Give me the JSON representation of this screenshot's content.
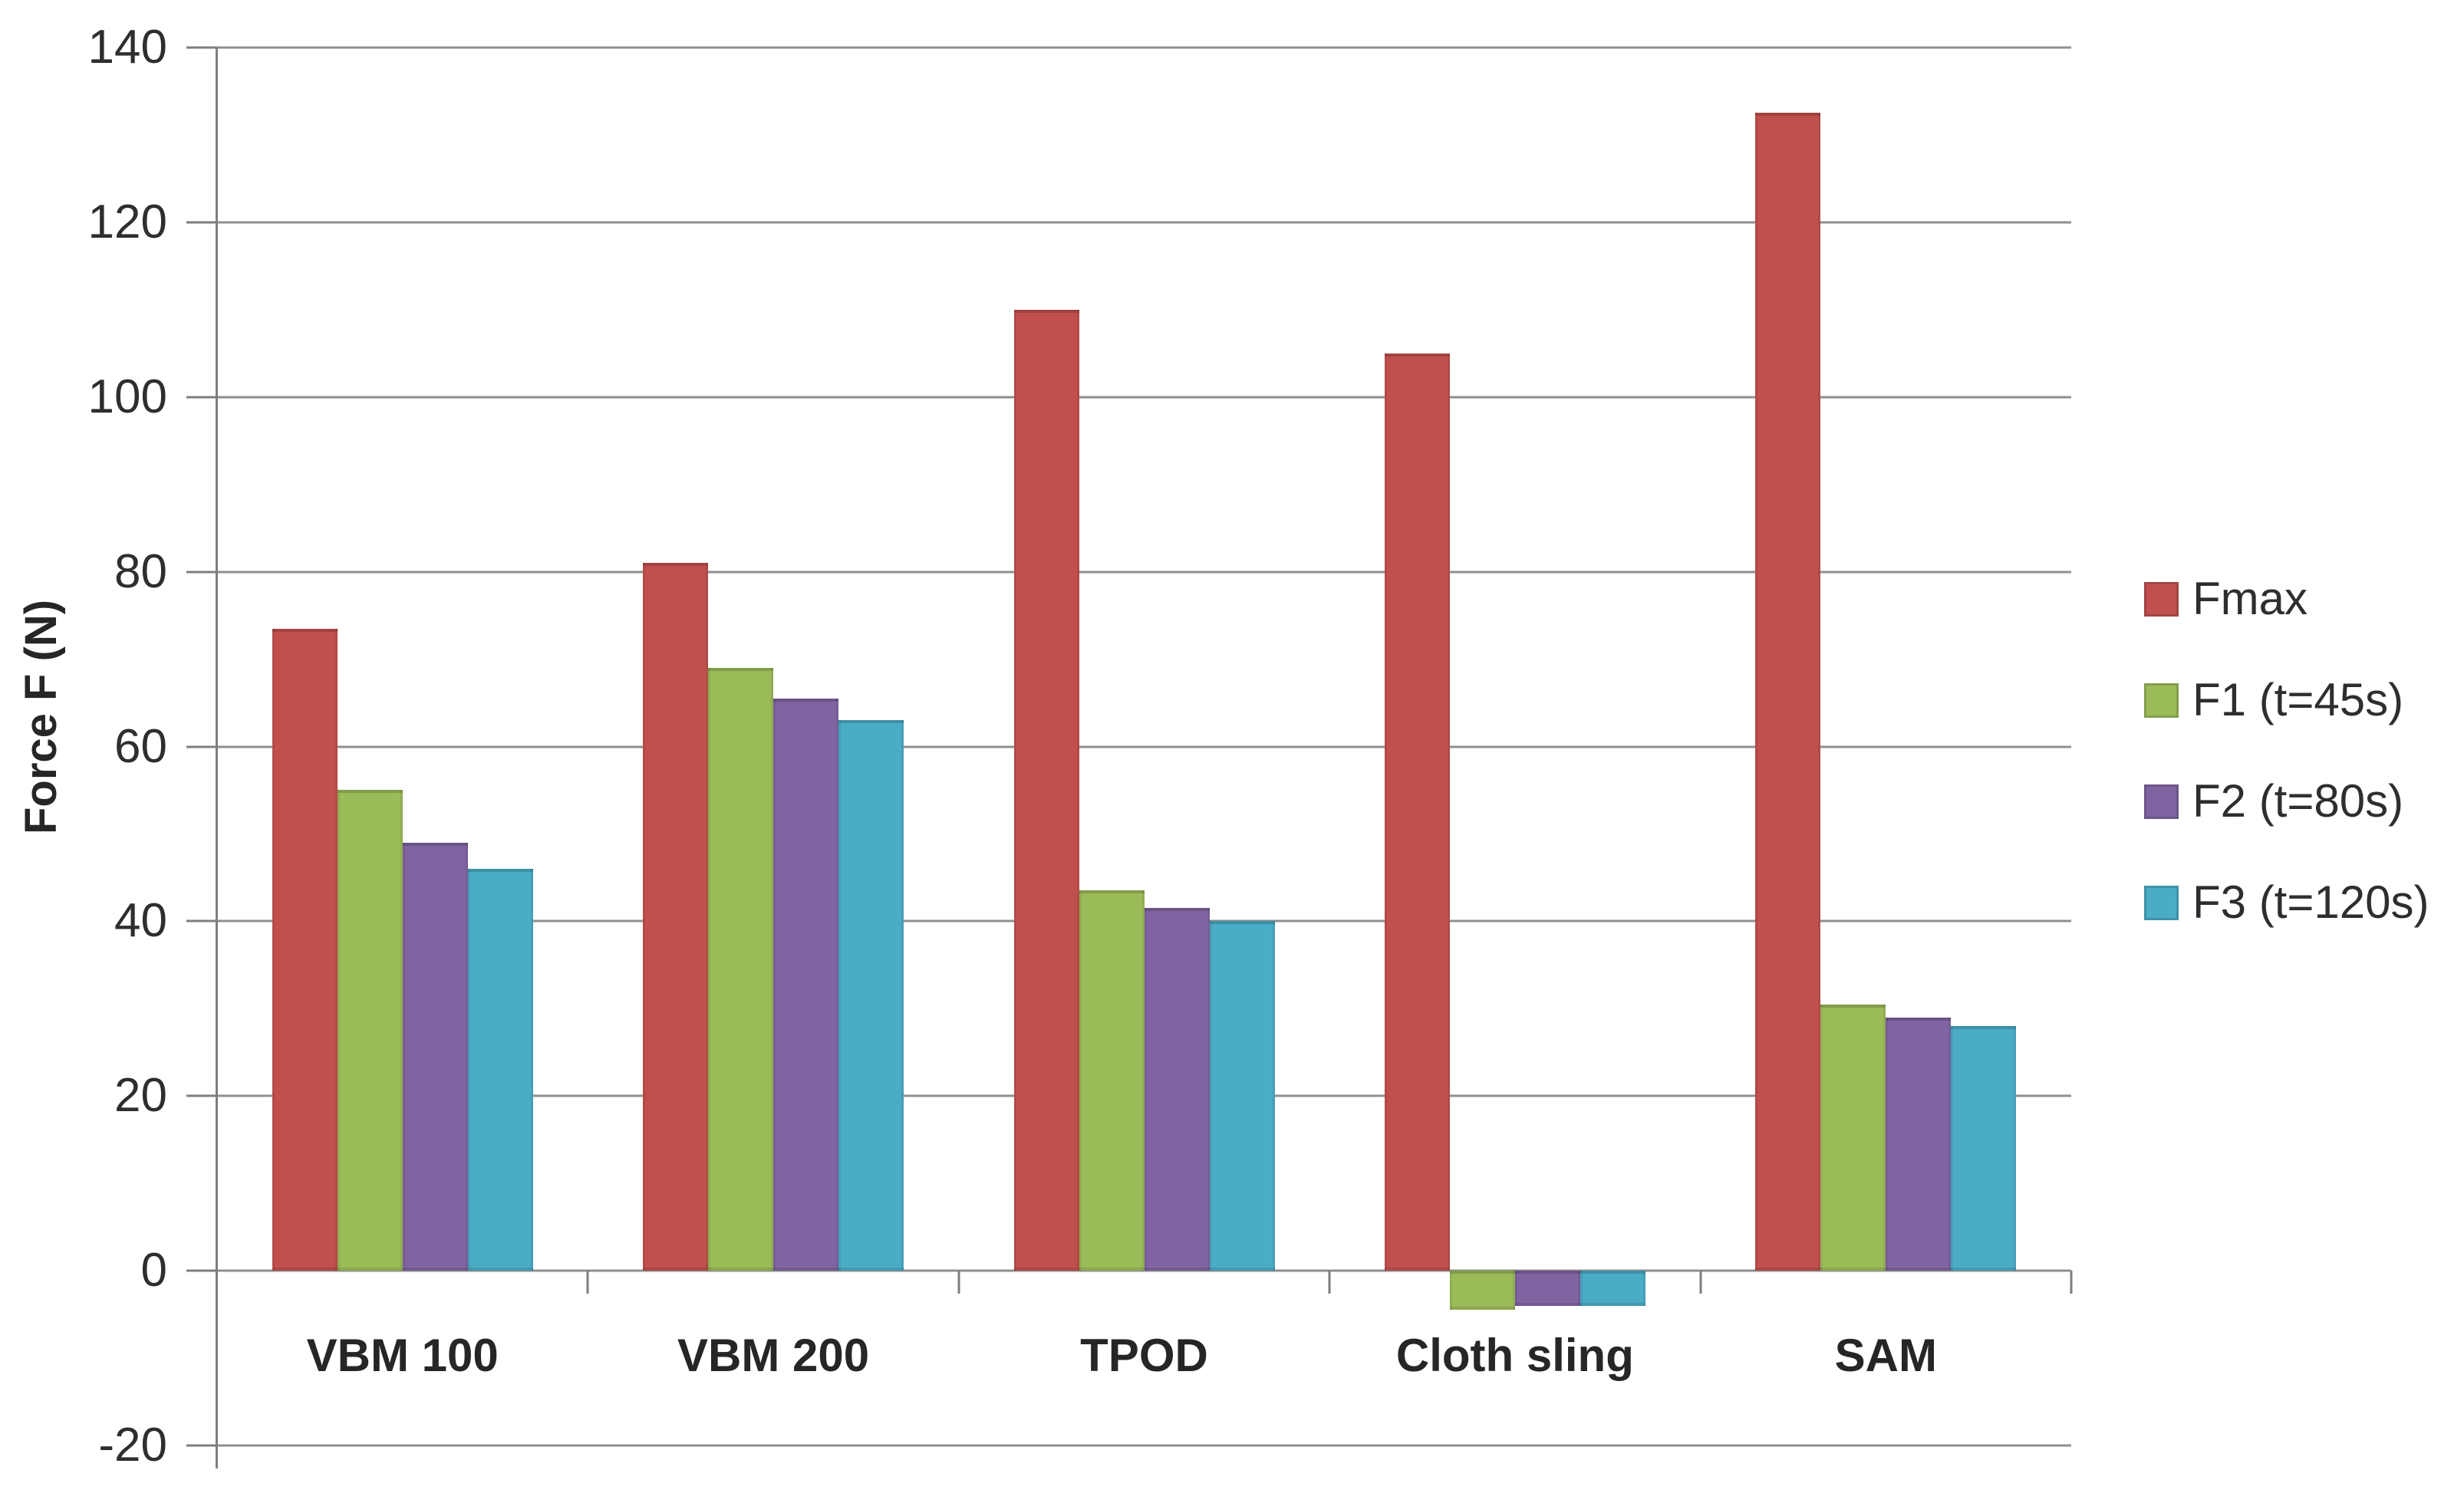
{
  "chart_data": {
    "type": "bar",
    "title": "",
    "xlabel": "",
    "ylabel": "Force F (N)",
    "categories": [
      "VBM 100",
      "VBM 200",
      "TPOD",
      "Cloth sling",
      "SAM"
    ],
    "series": [
      {
        "name": "Fmax",
        "color": "#C0504D",
        "values": [
          73.5,
          81,
          110,
          105,
          132.5
        ]
      },
      {
        "name": "F1 (t=45s)",
        "color": "#9BBB59",
        "values": [
          55,
          69,
          43.5,
          -4.5,
          30.5
        ]
      },
      {
        "name": "F2 (t=80s)",
        "color": "#8064A2",
        "values": [
          49,
          65.5,
          41.5,
          -4,
          29
        ]
      },
      {
        "name": "F3 (t=120s)",
        "color": "#4BACC6",
        "values": [
          46,
          63,
          40,
          -4,
          28
        ]
      }
    ],
    "ylim": [
      -20,
      140
    ],
    "yticks": [
      140,
      120,
      100,
      80,
      60,
      40,
      20,
      0,
      -20
    ],
    "grid": true,
    "legend_position": "right"
  },
  "colors": {
    "grid": "#8f8f8f",
    "axis": "#7e7e7e",
    "text": "#2e2e2e",
    "background": "#ffffff"
  }
}
